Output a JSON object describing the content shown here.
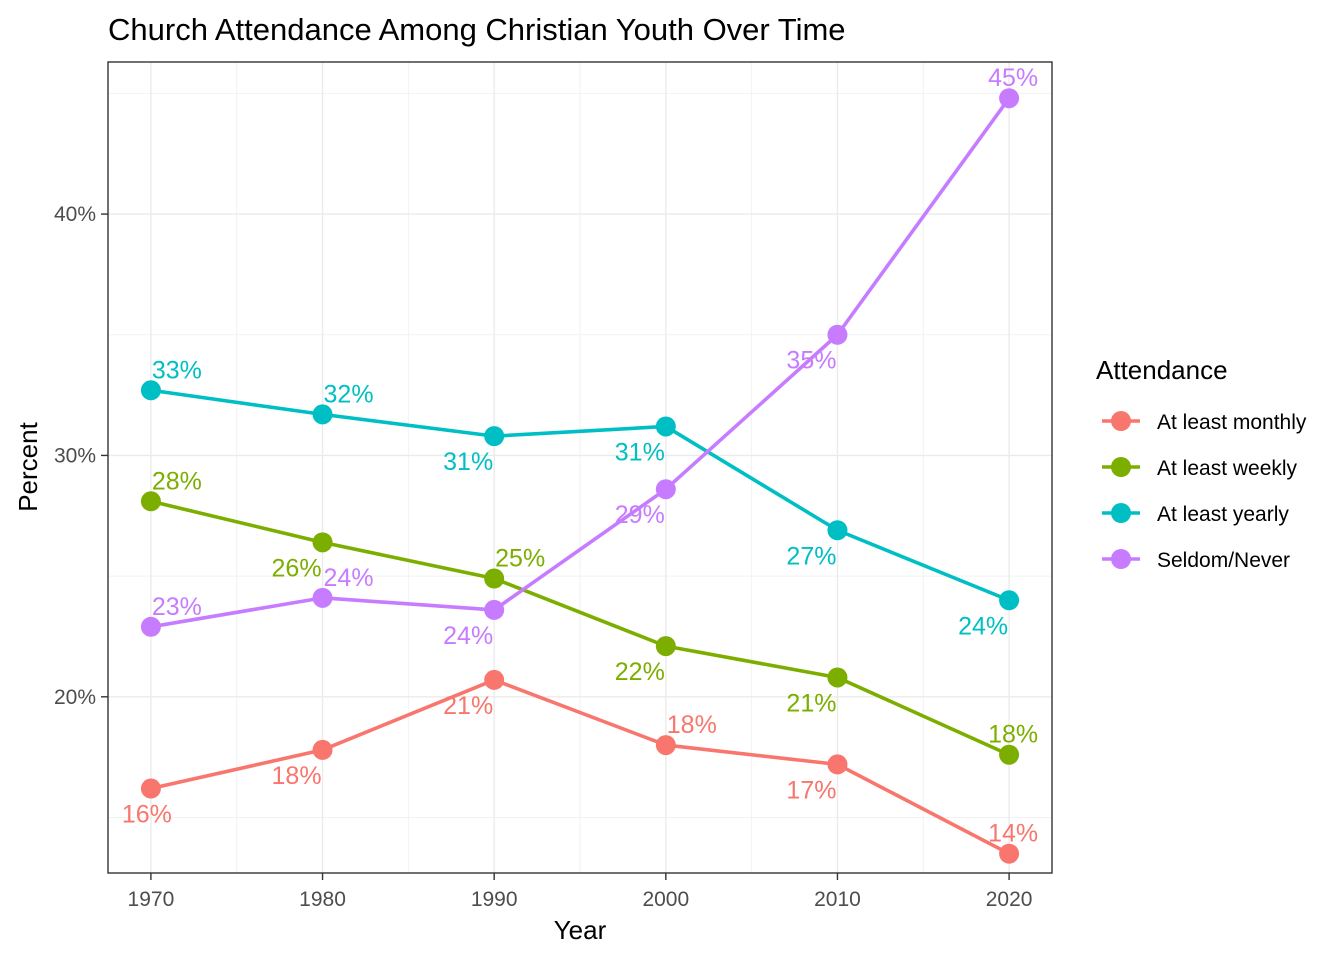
{
  "chart_data": {
    "type": "line",
    "title": "Church Attendance Among Christian Youth Over Time",
    "xlabel": "Year",
    "ylabel": "Percent",
    "x": [
      1970,
      1980,
      1990,
      2000,
      2010,
      2020
    ],
    "x_ticks": [
      "1970",
      "1980",
      "1990",
      "2000",
      "2010",
      "2020"
    ],
    "xlim": [
      1967.5,
      2022.5
    ],
    "ylim": [
      12.7,
      46.3
    ],
    "y_ticks": [
      20,
      30,
      40
    ],
    "y_tick_labels": [
      "20%",
      "30%",
      "40%"
    ],
    "grid": true,
    "legend": {
      "title": "Attendance",
      "position": "right"
    },
    "series": [
      {
        "name": "At least monthly",
        "color": "#F8766D",
        "values": [
          16.2,
          17.8,
          20.7,
          18.0,
          17.2,
          13.5
        ],
        "labels": [
          "16%",
          "18%",
          "21%",
          "18%",
          "17%",
          "14%"
        ]
      },
      {
        "name": "At least weekly",
        "color": "#7CAE00",
        "values": [
          28.1,
          26.4,
          24.9,
          22.1,
          20.8,
          17.6
        ],
        "labels": [
          "28%",
          "26%",
          "25%",
          "22%",
          "21%",
          "18%"
        ]
      },
      {
        "name": "At least yearly",
        "color": "#00BFC4",
        "values": [
          32.7,
          31.7,
          30.8,
          31.2,
          26.9,
          24.0
        ],
        "labels": [
          "33%",
          "32%",
          "31%",
          "31%",
          "27%",
          "24%"
        ]
      },
      {
        "name": "Seldom/Never",
        "color": "#C77CFF",
        "values": [
          22.9,
          24.1,
          23.6,
          28.6,
          35.0,
          44.8
        ],
        "labels": [
          "23%",
          "24%",
          "24%",
          "29%",
          "35%",
          "45%"
        ]
      }
    ]
  }
}
